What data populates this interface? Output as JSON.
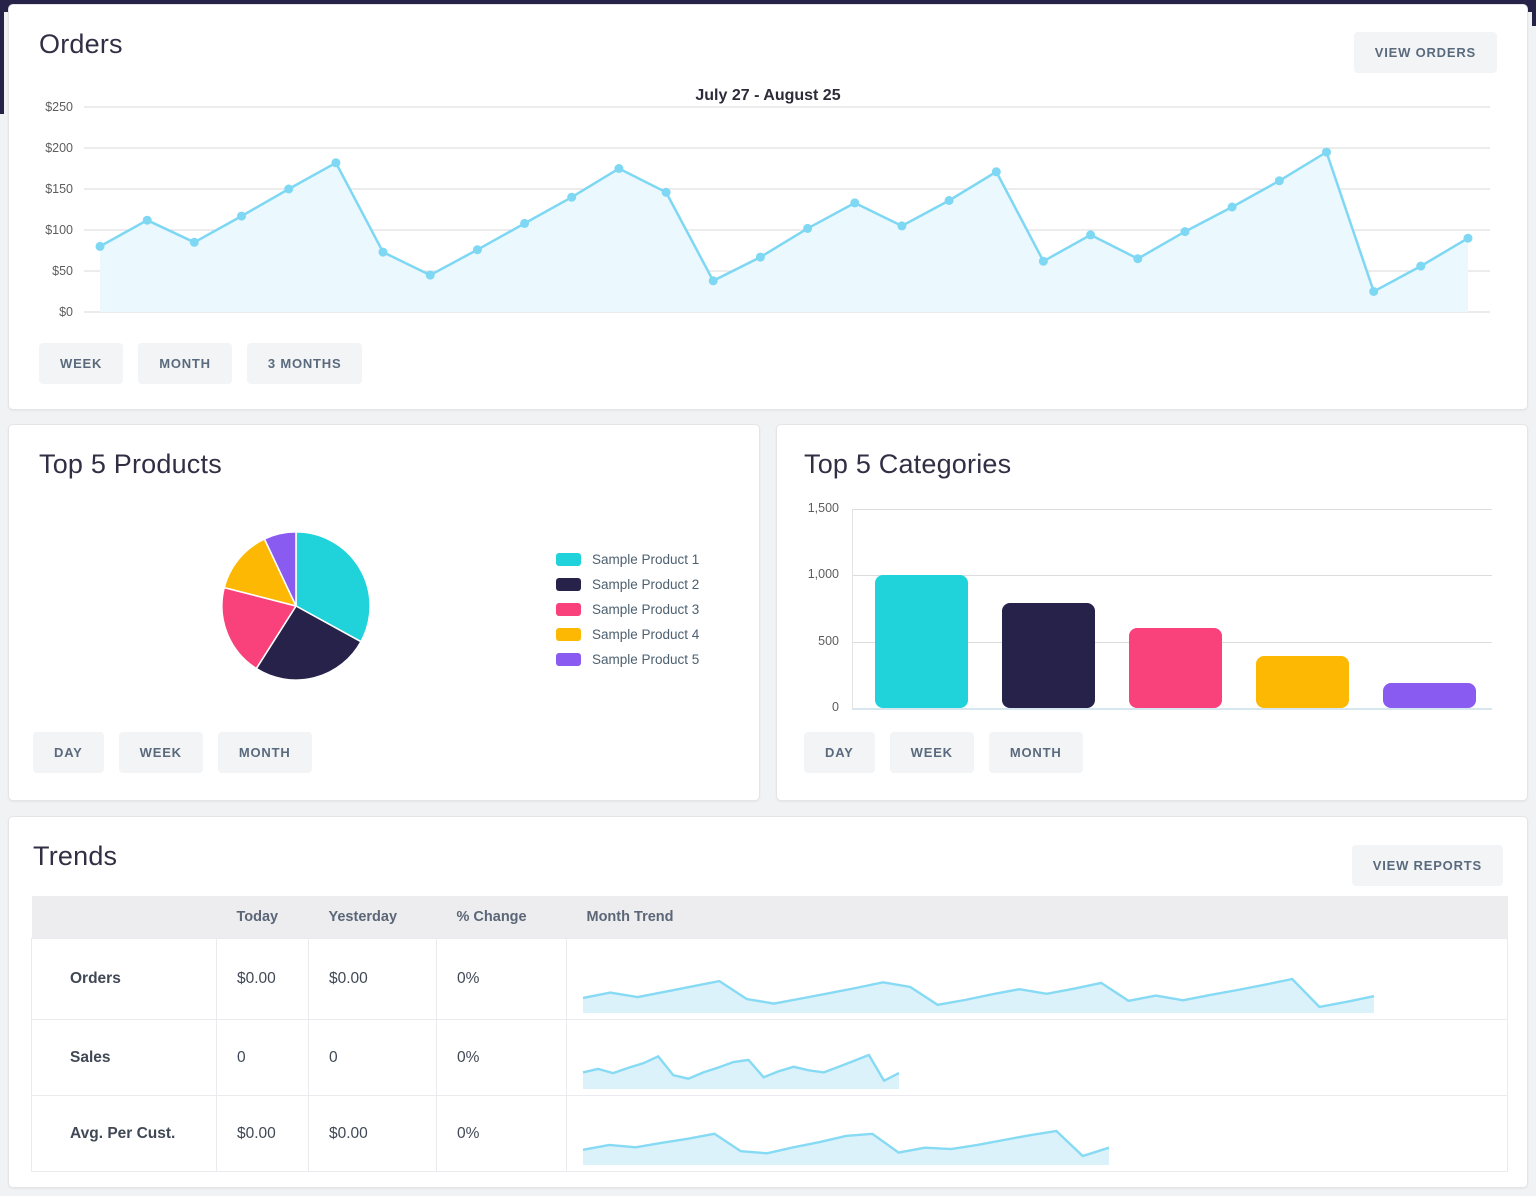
{
  "page": {
    "colors": {
      "accent_navy": "#262248",
      "cyan": "#20d2da",
      "navy": "#26224a",
      "pink": "#f9417b",
      "yellow": "#fcb803",
      "purple": "#8a5bf1",
      "line": "#7ed7f3",
      "line_fill": "#ebf8fd",
      "spark_fill": "#dcf2fb",
      "spark_line": "#86daf4"
    }
  },
  "orders": {
    "title": "Orders",
    "view_button": "VIEW ORDERS",
    "tabs": [
      "WEEK",
      "MONTH",
      "3 MONTHS"
    ],
    "chart_data": {
      "type": "line",
      "title": "July 27 - August 25",
      "y_ticks": [
        "$250",
        "$200",
        "$150",
        "$100",
        "$50",
        "$0"
      ],
      "ylim": [
        0,
        250
      ],
      "grid": true,
      "values": [
        80,
        112,
        85,
        117,
        150,
        182,
        73,
        45,
        76,
        108,
        140,
        175,
        146,
        38,
        67,
        102,
        133,
        105,
        136,
        171,
        62,
        94,
        65,
        98,
        128,
        160,
        195,
        25,
        56,
        90
      ]
    }
  },
  "products": {
    "title": "Top 5 Products",
    "tabs": [
      "DAY",
      "WEEK",
      "MONTH"
    ],
    "chart_data": {
      "type": "pie",
      "legend_position": "right",
      "slices": [
        {
          "label": "Sample Product 1",
          "value": 33,
          "color": "#20d2da"
        },
        {
          "label": "Sample Product 2",
          "value": 26,
          "color": "#26224a"
        },
        {
          "label": "Sample Product 3",
          "value": 20,
          "color": "#f9417b"
        },
        {
          "label": "Sample Product 4",
          "value": 14,
          "color": "#fcb803"
        },
        {
          "label": "Sample Product 5",
          "value": 7,
          "color": "#8a5bf1"
        }
      ]
    }
  },
  "categories": {
    "title": "Top 5 Categories",
    "tabs": [
      "DAY",
      "WEEK",
      "MONTH"
    ],
    "chart_data": {
      "type": "bar",
      "y_ticks": [
        "1,500",
        "1,000",
        "500",
        "0"
      ],
      "ylim": [
        0,
        1500
      ],
      "grid": true,
      "values": [
        1000,
        790,
        600,
        395,
        190
      ],
      "colors": [
        "#20d2da",
        "#26224a",
        "#f9417b",
        "#fcb803",
        "#8a5bf1"
      ]
    }
  },
  "trends": {
    "title": "Trends",
    "view_button": "VIEW REPORTS",
    "table": {
      "headers": [
        "",
        "Today",
        "Yesterday",
        "% Change",
        "Month Trend"
      ],
      "rows": [
        {
          "label": "Orders",
          "today": "$0.00",
          "yesterday": "$0.00",
          "change": "0%",
          "spark_width": 795,
          "spark": [
            80,
            112,
            85,
            117,
            150,
            182,
            73,
            45,
            76,
            108,
            140,
            175,
            146,
            38,
            67,
            102,
            133,
            105,
            136,
            171,
            62,
            94,
            65,
            98,
            128,
            160,
            195,
            25,
            56,
            90
          ]
        },
        {
          "label": "Sales",
          "today": "0",
          "yesterday": "0",
          "change": "0%",
          "spark_width": 320,
          "spark": [
            42,
            52,
            40,
            55,
            68,
            88,
            34,
            24,
            42,
            56,
            72,
            78,
            28,
            45,
            58,
            48,
            42,
            58,
            75,
            92,
            18,
            40
          ]
        },
        {
          "label": "Avg. Per Cust.",
          "today": "$0.00",
          "yesterday": "$0.00",
          "change": "0%",
          "spark_width": 530,
          "spark": [
            38,
            52,
            45,
            58,
            70,
            84,
            34,
            28,
            45,
            60,
            78,
            84,
            30,
            44,
            40,
            52,
            66,
            80,
            92,
            20,
            44
          ]
        }
      ]
    }
  }
}
